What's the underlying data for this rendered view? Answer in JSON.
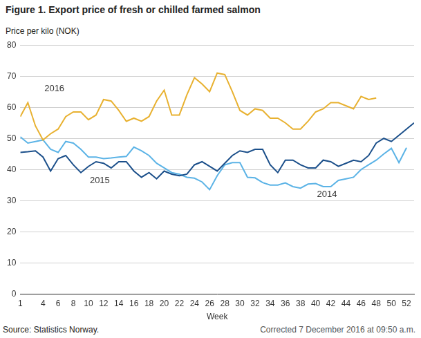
{
  "chart_data": {
    "type": "line",
    "title": "Figure 1. Export price of fresh or chilled farmed salmon",
    "y_label": "Price per kilo (NOK)",
    "x_label": "Week",
    "source": "Source: Statistics Norway.",
    "note": "Corrected 7 December 2016 at 09:50 a.m.",
    "x": [
      1,
      2,
      3,
      4,
      5,
      6,
      7,
      8,
      9,
      10,
      11,
      12,
      13,
      14,
      15,
      16,
      17,
      18,
      19,
      20,
      21,
      22,
      23,
      24,
      25,
      26,
      27,
      28,
      29,
      30,
      31,
      32,
      33,
      34,
      35,
      36,
      37,
      38,
      39,
      40,
      41,
      42,
      43,
      44,
      45,
      46,
      47,
      48,
      49,
      50,
      51,
      52,
      53
    ],
    "xlim": [
      1,
      53
    ],
    "xticks": [
      1,
      4,
      6,
      8,
      10,
      12,
      14,
      16,
      18,
      20,
      22,
      24,
      26,
      28,
      30,
      32,
      34,
      36,
      38,
      40,
      42,
      44,
      46,
      48,
      50,
      52
    ],
    "ylim": [
      0,
      80
    ],
    "yticks": [
      0,
      10,
      20,
      30,
      40,
      50,
      60,
      70,
      80
    ],
    "grid": true,
    "series": [
      {
        "name": "2016",
        "color": "#e8b130",
        "values": [
          57,
          61.5,
          54,
          49.5,
          51.5,
          53,
          57,
          58.5,
          58.5,
          56,
          57.5,
          62.5,
          62,
          59,
          55.5,
          56.5,
          55.5,
          57,
          62,
          65.5,
          57.5,
          57.5,
          64,
          69.5,
          67.5,
          65,
          71,
          70.5,
          65,
          59,
          57.5,
          59.5,
          59,
          56.5,
          56.5,
          55,
          53,
          53,
          55.5,
          58.5,
          59.5,
          61.5,
          61.5,
          60.5,
          59.5,
          63.5,
          62.5,
          63,
          null,
          null,
          null,
          null,
          null
        ]
      },
      {
        "name": "2015",
        "color": "#1b4f8a",
        "values": [
          45.5,
          45.7,
          46,
          44,
          39.5,
          43.5,
          44.5,
          41.5,
          39,
          41,
          42.5,
          42,
          40.5,
          42.5,
          42.5,
          39.5,
          37.5,
          39,
          37,
          39.5,
          38.5,
          38,
          38.5,
          41.5,
          42.5,
          41,
          39.5,
          42,
          44.5,
          46,
          45.5,
          46.5,
          46.5,
          41.5,
          39,
          43,
          43,
          41.5,
          40.5,
          40.5,
          43,
          42.5,
          41,
          42,
          43,
          42.5,
          44.5,
          48.5,
          50,
          49,
          51,
          53,
          55
        ]
      },
      {
        "name": "2014",
        "color": "#5bb3e6",
        "values": [
          50.5,
          48.5,
          49,
          49.5,
          46.5,
          45.5,
          49,
          48.5,
          46.5,
          44,
          44,
          43.5,
          43.7,
          44,
          44.2,
          47.2,
          46,
          44.5,
          42,
          40.5,
          39,
          38.5,
          37.5,
          37.2,
          36,
          33.5,
          38,
          41.5,
          42.2,
          42.2,
          37.5,
          37.3,
          35.8,
          35,
          35,
          35.7,
          34.5,
          34,
          35.3,
          35.5,
          34.5,
          34.5,
          36.5,
          37,
          37.5,
          40,
          41.5,
          43,
          45,
          46.8,
          42.2,
          47,
          null
        ]
      }
    ],
    "annotations": [
      {
        "text": "2016",
        "x": 5.5,
        "y": 66
      },
      {
        "text": "2015",
        "x": 11.5,
        "y": 36.5
      },
      {
        "text": "2014",
        "x": 41.5,
        "y": 32
      }
    ]
  }
}
